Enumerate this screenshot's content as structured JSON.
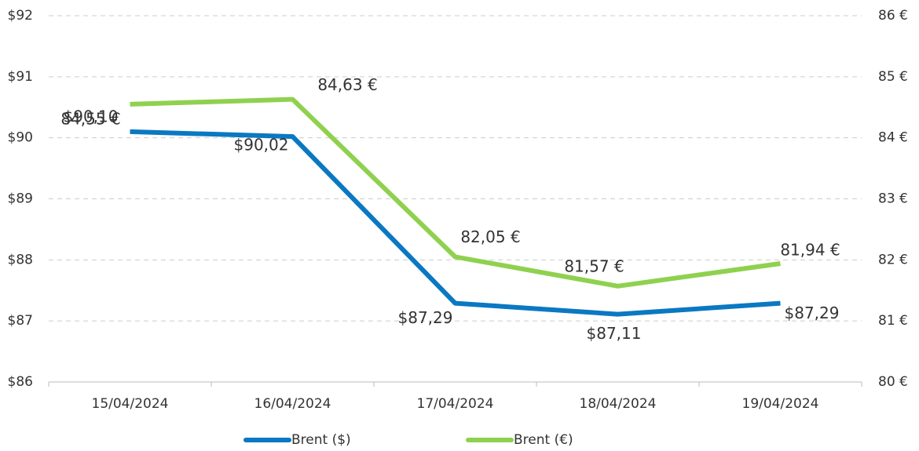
{
  "chart_data": {
    "type": "line",
    "categories": [
      "15/04/2024",
      "16/04/2024",
      "17/04/2024",
      "18/04/2024",
      "19/04/2024"
    ],
    "series": [
      {
        "name": "Brent ($)",
        "color": "#0a78c2",
        "values": [
          90.1,
          90.02,
          87.29,
          87.11,
          87.29
        ],
        "value_labels": [
          "$90,10",
          "$90,02",
          "$87,29",
          "$87,11",
          "$87,29"
        ]
      },
      {
        "name": "Brent (€)",
        "color": "#8fd14f",
        "axis": "y2",
        "values": [
          84.55,
          84.63,
          82.05,
          81.57,
          81.94
        ],
        "value_labels": [
          "84,55 €",
          "84,63 €",
          "82,05 €",
          "81,57 €",
          "81,94 €"
        ]
      }
    ],
    "ylim": [
      86,
      92
    ],
    "yticks": [
      {
        "value": 86,
        "label": "$86"
      },
      {
        "value": 87,
        "label": "$87"
      },
      {
        "value": 88,
        "label": "$88"
      },
      {
        "value": 89,
        "label": "$89"
      },
      {
        "value": 90,
        "label": "$90"
      },
      {
        "value": 91,
        "label": "$91"
      },
      {
        "value": 92,
        "label": "$92"
      }
    ],
    "y2lim": [
      80,
      86
    ],
    "y2ticks": [
      {
        "value": 80,
        "label": "80 €"
      },
      {
        "value": 81,
        "label": "81 €"
      },
      {
        "value": 82,
        "label": "82 €"
      },
      {
        "value": 83,
        "label": "83 €"
      },
      {
        "value": 84,
        "label": "84 €"
      },
      {
        "value": 85,
        "label": "85 €"
      },
      {
        "value": 86,
        "label": "86 €"
      }
    ],
    "grid": true,
    "legend": "bottom"
  }
}
